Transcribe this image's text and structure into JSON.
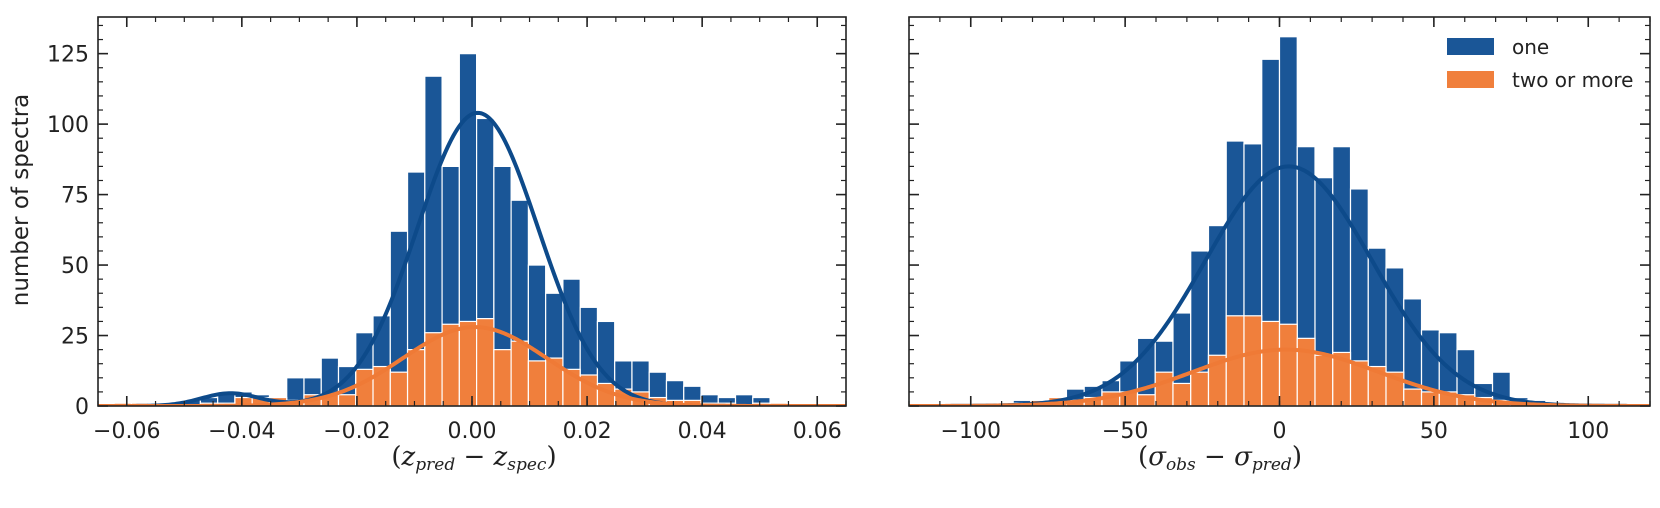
{
  "colors": {
    "one": "#1a5697",
    "two": "#f07f3c",
    "one_curve": "#0d4a8a",
    "two_curve": "#ef7a36"
  },
  "legend": {
    "items": [
      {
        "label": "one",
        "color": "#1a5697"
      },
      {
        "label": "two or more",
        "color": "#f07f3c"
      }
    ],
    "placement": "top-right"
  },
  "chart_data": [
    {
      "type": "bar",
      "title": "",
      "ylabel": "number of spectra",
      "xlabel": {
        "open": "(",
        "a": "z",
        "a_sub": "pred",
        "minus": " − ",
        "b": "z",
        "b_sub": "spec",
        "close": ")"
      },
      "xlim": [
        -0.065,
        0.065
      ],
      "ylim": [
        0,
        138
      ],
      "xticks": [
        -0.06,
        -0.04,
        -0.02,
        0.0,
        0.02,
        0.04,
        0.06
      ],
      "xtick_labels": [
        "−0.06",
        "−0.04",
        "−0.02",
        "0.00",
        "0.02",
        "0.04",
        "0.06"
      ],
      "yticks": [
        0,
        25,
        50,
        75,
        100,
        125
      ],
      "ytick_labels": [
        "0",
        "25",
        "50",
        "75",
        "100",
        "125"
      ],
      "bin_width": 0.003,
      "series": [
        {
          "name": "one",
          "bin_starts": [
            -0.0622,
            -0.0592,
            -0.0562,
            -0.0532,
            -0.0502,
            -0.0472,
            -0.0442,
            -0.0412,
            -0.0382,
            -0.0352,
            -0.0322,
            -0.0292,
            -0.0262,
            -0.0232,
            -0.0202,
            -0.0172,
            -0.0142,
            -0.0112,
            -0.0082,
            -0.0052,
            -0.0022,
            0.0008,
            0.0038,
            0.0068,
            0.0098,
            0.0128,
            0.0158,
            0.0188,
            0.0218,
            0.0248,
            0.0278,
            0.0308,
            0.0338,
            0.0368,
            0.0398,
            0.0428,
            0.0458,
            0.0488,
            0.0518
          ],
          "values": [
            1,
            1,
            0,
            1,
            2,
            3,
            5,
            5,
            4,
            3,
            10,
            10,
            17,
            14,
            26,
            32,
            62,
            83,
            117,
            85,
            125,
            102,
            85,
            73,
            50,
            40,
            45,
            35,
            30,
            16,
            16,
            12,
            9,
            7,
            4,
            3,
            4,
            3,
            1
          ]
        },
        {
          "name": "two or more",
          "bin_starts": [
            -0.0622,
            -0.0592,
            -0.0562,
            -0.0532,
            -0.0502,
            -0.0472,
            -0.0442,
            -0.0412,
            -0.0382,
            -0.0352,
            -0.0322,
            -0.0292,
            -0.0262,
            -0.0232,
            -0.0202,
            -0.0172,
            -0.0142,
            -0.0112,
            -0.0082,
            -0.0052,
            -0.0022,
            0.0008,
            0.0038,
            0.0068,
            0.0098,
            0.0128,
            0.0158,
            0.0188,
            0.0218,
            0.0248,
            0.0278,
            0.0308,
            0.0338,
            0.0368,
            0.0398,
            0.0428,
            0.0458,
            0.0488,
            0.0518
          ],
          "values": [
            1,
            1,
            0,
            0,
            0,
            1,
            1,
            3,
            3,
            3,
            2,
            4,
            4,
            4,
            13,
            14,
            12,
            20,
            26,
            29,
            30,
            31,
            20,
            23,
            16,
            17,
            13,
            11,
            8,
            6,
            5,
            3,
            2,
            2,
            1,
            1,
            0,
            1,
            1
          ]
        }
      ],
      "fits": [
        {
          "series": "one",
          "peak": 104,
          "mean": 0.001,
          "sigma": 0.0105,
          "tail_amp": 4.5,
          "tail_mean": -0.042,
          "tail_sigma": 0.005
        },
        {
          "series": "two or more",
          "peak": 28,
          "mean": 0.0005,
          "sigma": 0.0125
        }
      ]
    },
    {
      "type": "bar",
      "title": "",
      "ylabel": "",
      "xlabel": {
        "open": "(",
        "a": "σ",
        "a_sub": "obs",
        "minus": " − ",
        "b": "σ",
        "b_sub": "pred",
        "close": ")"
      },
      "xlim": [
        -120,
        120
      ],
      "ylim": [
        0,
        138
      ],
      "xticks": [
        -100,
        -50,
        0,
        50,
        100
      ],
      "xtick_labels": [
        "−100",
        "−50",
        "0",
        "50",
        "100"
      ],
      "yticks": [
        0,
        25,
        50,
        75,
        100,
        125
      ],
      "ytick_labels": [
        "",
        "",
        "",
        "",
        "",
        ""
      ],
      "bin_width": 5.75,
      "series": [
        {
          "name": "one",
          "bin_starts": [
            -92,
            -86.25,
            -80.5,
            -74.75,
            -69,
            -63.25,
            -57.5,
            -51.75,
            -46,
            -40.25,
            -34.5,
            -28.75,
            -23,
            -17.25,
            -11.5,
            -5.75,
            0,
            5.75,
            11.5,
            17.25,
            23,
            28.75,
            34.5,
            40.25,
            46,
            51.75,
            57.5,
            63.25,
            69,
            74.75,
            80.5,
            86.25
          ],
          "values": [
            1,
            2,
            2,
            2,
            6,
            7,
            9,
            16,
            24,
            23,
            33,
            55,
            64,
            94,
            93,
            123,
            131,
            92,
            81,
            92,
            77,
            56,
            49,
            38,
            27,
            26,
            20,
            8,
            12,
            3,
            2,
            1
          ]
        },
        {
          "name": "two or more",
          "bin_starts": [
            -92,
            -86.25,
            -80.5,
            -74.75,
            -69,
            -63.25,
            -57.5,
            -51.75,
            -46,
            -40.25,
            -34.5,
            -28.75,
            -23,
            -17.25,
            -11.5,
            -5.75,
            0,
            5.75,
            11.5,
            17.25,
            23,
            28.75,
            34.5,
            40.25,
            46,
            51.75,
            57.5,
            63.25,
            69,
            74.75,
            80.5,
            86.25
          ],
          "values": [
            1,
            1,
            2,
            3,
            2,
            3,
            5,
            5,
            4,
            12,
            8,
            12,
            18,
            32,
            32,
            30,
            29,
            24,
            18,
            19,
            16,
            14,
            12,
            6,
            5,
            5,
            4,
            3,
            2,
            2,
            1,
            1
          ]
        }
      ],
      "fits": [
        {
          "series": "one",
          "peak": 85,
          "mean": 3,
          "sigma": 27
        },
        {
          "series": "two or more",
          "peak": 20,
          "mean": 2,
          "sigma": 30
        }
      ]
    }
  ]
}
